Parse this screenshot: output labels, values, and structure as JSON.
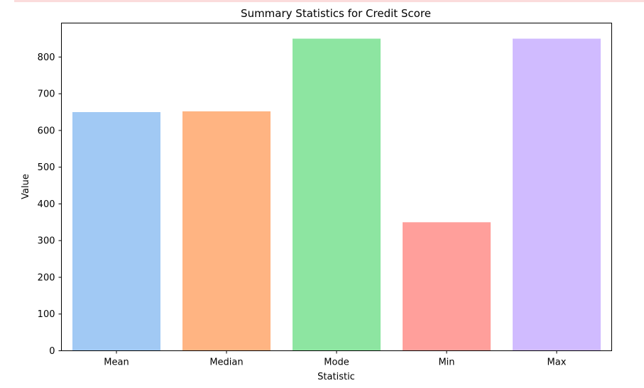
{
  "chart_data": {
    "type": "bar",
    "title": "Summary Statistics for Credit Score",
    "xlabel": "Statistic",
    "ylabel": "Value",
    "categories": [
      "Mean",
      "Median",
      "Mode",
      "Min",
      "Max"
    ],
    "values": [
      650,
      652,
      850,
      350,
      850
    ],
    "colors": [
      "#a1c9f4",
      "#ffb482",
      "#8de5a1",
      "#ff9f9b",
      "#d0bbff"
    ],
    "ylim": [
      0,
      892.5
    ],
    "yticks": [
      0,
      100,
      200,
      300,
      400,
      500,
      600,
      700,
      800
    ],
    "ytick_labels": [
      "0",
      "100",
      "200",
      "300",
      "400",
      "500",
      "600",
      "700",
      "800"
    ],
    "grid": false,
    "legend": "none"
  }
}
